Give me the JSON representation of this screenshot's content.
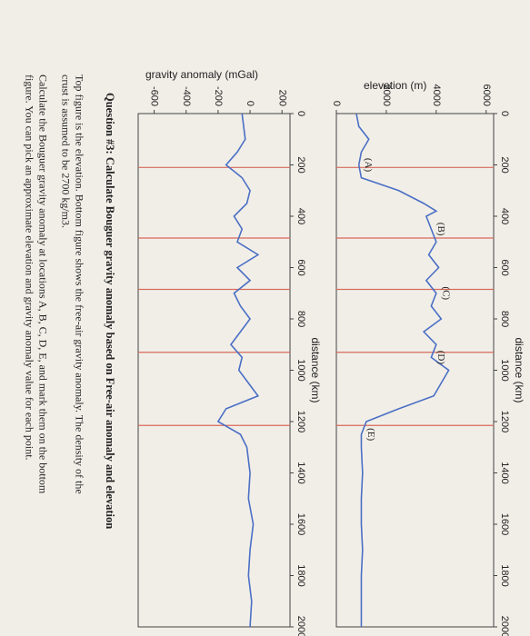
{
  "title": "Question #3: Calculate Bouguer gravity anomaly based on Free-air anomaly and elevation",
  "caption_1": [
    "Top figure is the elevation. Bottom figure shows the free-air gravity anomaly. The density of the",
    "crust is assumed to be 2700 kg/m3."
  ],
  "caption_2": [
    "Calculate the Bouguer gravity anomaly at locations A, B, C, D, E, and mark them on the bottom",
    "figure. You can pick an approximate elevation and gravity anomaly value for each point."
  ],
  "chart_data": [
    {
      "type": "line",
      "xlabel": "distance (km)",
      "ylabel": "gravity anomaly (mGal)",
      "x": [
        0,
        100,
        150,
        200,
        250,
        300,
        350,
        400,
        450,
        500,
        550,
        600,
        650,
        700,
        750,
        800,
        850,
        900,
        950,
        1000,
        1050,
        1100,
        1150,
        1200,
        1250,
        1300,
        1400,
        1500,
        1600,
        1700,
        1800,
        1900,
        2000
      ],
      "series": [
        {
          "color": "#4a6fc4",
          "values": [
            -50,
            -30,
            -80,
            -150,
            -50,
            0,
            -20,
            -100,
            -50,
            -80,
            50,
            -80,
            0,
            -100,
            -60,
            0,
            -60,
            -120,
            -50,
            -70,
            -10,
            50,
            -150,
            -200,
            -60,
            -20,
            0,
            -10,
            20,
            0,
            -10,
            10,
            0
          ]
        }
      ],
      "xlim": [
        0,
        2000
      ],
      "xticks": [
        0,
        200,
        400,
        600,
        800,
        1000,
        1200,
        1400,
        1600,
        1800,
        2000
      ],
      "ylim": [
        -700,
        250
      ],
      "yticks": [
        -600,
        -400,
        -200,
        0,
        200
      ],
      "reference_x": [
        210,
        485,
        685,
        930,
        1215
      ],
      "reference_color": "#d9695a"
    },
    {
      "type": "line",
      "xlabel": "distance (km)",
      "ylabel": "elevation (m)",
      "x": [
        0,
        50,
        100,
        150,
        200,
        250,
        300,
        350,
        380,
        400,
        450,
        500,
        550,
        600,
        650,
        700,
        750,
        800,
        850,
        900,
        950,
        1000,
        1050,
        1100,
        1150,
        1200,
        1250,
        1300,
        1400,
        1500,
        1600,
        1700,
        1800,
        1900,
        2000
      ],
      "series": [
        {
          "color": "#4a6fc4",
          "values": [
            800,
            900,
            1300,
            1000,
            900,
            1000,
            2500,
            3500,
            4000,
            3600,
            3800,
            4000,
            3700,
            4100,
            3600,
            4000,
            3800,
            4200,
            3500,
            4000,
            3800,
            4500,
            4200,
            3900,
            2500,
            1200,
            1000,
            1000,
            1050,
            1000,
            1000,
            1050,
            1000,
            1000,
            1000
          ]
        }
      ],
      "xlim": [
        0,
        2000
      ],
      "xticks": [
        0,
        200,
        400,
        600,
        800,
        1000,
        1200,
        1400,
        1600,
        1800,
        2000
      ],
      "ylim": [
        0,
        6300
      ],
      "yticks": [
        0,
        2000,
        4000,
        6000
      ],
      "reference_x": [
        210,
        485,
        685,
        930,
        1215
      ],
      "reference_color": "#d9695a",
      "annotations": [
        "(A)",
        "(B)",
        "(C)",
        "(D)",
        "(E)"
      ],
      "annotation_x": [
        200,
        450,
        700,
        950,
        1250
      ]
    }
  ]
}
